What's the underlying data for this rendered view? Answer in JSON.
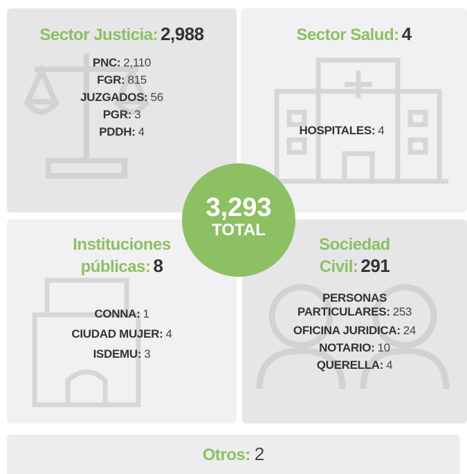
{
  "center": {
    "total": "3,293",
    "label": "TOTAL"
  },
  "sectors": [
    {
      "title": [
        "Sector Justicia:"
      ],
      "total": "2,988",
      "items": [
        {
          "label": [
            "PNC:"
          ],
          "value": "2,110"
        },
        {
          "label": [
            "FGR:"
          ],
          "value": 815
        },
        {
          "label": [
            "JUZGADOS:"
          ],
          "value": 56
        },
        {
          "label": [
            "PGR:"
          ],
          "value": 3
        },
        {
          "label": [
            "PDDH:"
          ],
          "value": 4
        }
      ]
    },
    {
      "title": [
        "Sector Salud:"
      ],
      "total": 4,
      "items": [
        {
          "label": [
            "HOSPITALES:"
          ],
          "value": 4
        }
      ]
    },
    {
      "title": [
        "Instituciones",
        "públicas:"
      ],
      "total": 8,
      "items": [
        {
          "label": [
            "CONNA:"
          ],
          "value": 1
        },
        {
          "label": [
            "CIUDAD MUJER:"
          ],
          "value": 4
        },
        {
          "label": [
            "ISDEMU:"
          ],
          "value": 3
        }
      ]
    },
    {
      "title": [
        "Sociedad",
        "Civil:"
      ],
      "total": 291,
      "items": [
        {
          "label": [
            "PERSONAS",
            "PARTICULARES:"
          ],
          "value": 253
        },
        {
          "label": [
            "OFICINA JURIDICA:"
          ],
          "value": 24
        },
        {
          "label": [
            "NOTARIO:"
          ],
          "value": 10
        },
        {
          "label": [
            "QUERELLA:"
          ],
          "value": 4
        }
      ]
    }
  ],
  "footer": {
    "title": "Otros:",
    "value": 2
  }
}
